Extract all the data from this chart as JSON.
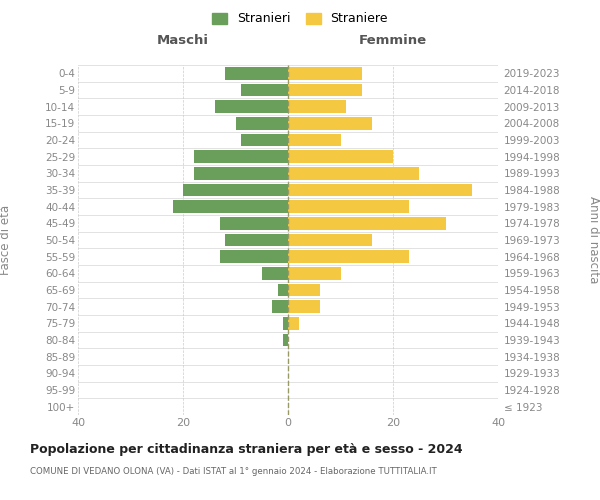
{
  "age_groups": [
    "100+",
    "95-99",
    "90-94",
    "85-89",
    "80-84",
    "75-79",
    "70-74",
    "65-69",
    "60-64",
    "55-59",
    "50-54",
    "45-49",
    "40-44",
    "35-39",
    "30-34",
    "25-29",
    "20-24",
    "15-19",
    "10-14",
    "5-9",
    "0-4"
  ],
  "birth_years": [
    "≤ 1923",
    "1924-1928",
    "1929-1933",
    "1934-1938",
    "1939-1943",
    "1944-1948",
    "1949-1953",
    "1954-1958",
    "1959-1963",
    "1964-1968",
    "1969-1973",
    "1974-1978",
    "1979-1983",
    "1984-1988",
    "1989-1993",
    "1994-1998",
    "1999-2003",
    "2004-2008",
    "2009-2013",
    "2014-2018",
    "2019-2023"
  ],
  "males": [
    0,
    0,
    0,
    0,
    1,
    1,
    3,
    2,
    5,
    13,
    12,
    13,
    22,
    20,
    18,
    18,
    9,
    10,
    14,
    9,
    12
  ],
  "females": [
    0,
    0,
    0,
    0,
    0,
    2,
    6,
    6,
    10,
    23,
    16,
    30,
    23,
    35,
    25,
    20,
    10,
    16,
    11,
    14,
    14
  ],
  "male_color": "#6a9e5b",
  "female_color": "#f5c842",
  "background_color": "#ffffff",
  "grid_color": "#cccccc",
  "title": "Popolazione per cittadinanza straniera per età e sesso - 2024",
  "subtitle": "COMUNE DI VEDANO OLONA (VA) - Dati ISTAT al 1° gennaio 2024 - Elaborazione TUTTITALIA.IT",
  "xlabel_left": "Maschi",
  "xlabel_right": "Femmine",
  "ylabel_left": "Fasce di età",
  "ylabel_right": "Anni di nascita",
  "legend_male": "Stranieri",
  "legend_female": "Straniere",
  "xlim": 40,
  "center_line_color": "#999966"
}
